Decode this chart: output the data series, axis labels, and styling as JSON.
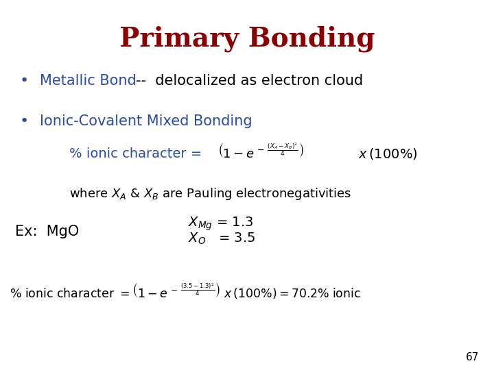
{
  "title": "Primary Bonding",
  "title_color": "#8B0000",
  "title_fontsize": 28,
  "bullet_color": "#2B4BA8",
  "bullet1": "Metallic Bond --  delocalized as electron cloud",
  "bullet2": "Ionic-Covalent Mixed Bonding",
  "formula_color": "#2B4BA8",
  "body_color": "#000000",
  "background_color": "#FFFFFF",
  "page_number": "67"
}
